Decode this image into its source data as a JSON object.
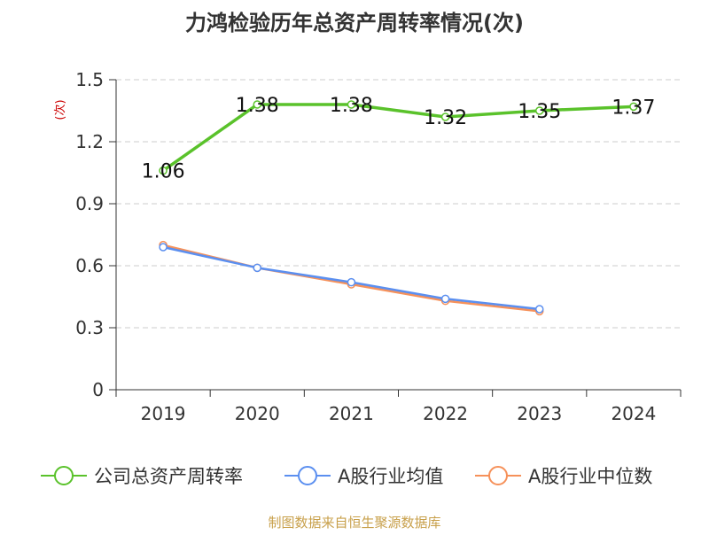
{
  "chart_data": {
    "type": "line",
    "title": "力鸿检验历年总资产周转率情况(次)",
    "ylabel": "(次)",
    "xlabel": "",
    "categories": [
      "2019",
      "2020",
      "2021",
      "2022",
      "2023",
      "2024"
    ],
    "ylim": [
      0,
      1.5
    ],
    "yticks": [
      0,
      0.3,
      0.6,
      0.9,
      1.2,
      1.5
    ],
    "ytick_labels": [
      "0",
      "0.3",
      "0.6",
      "0.9",
      "1.2",
      "1.5"
    ],
    "grid": true,
    "legend_position": "bottom",
    "series": [
      {
        "name": "公司总资产周转率",
        "color": "#5ac22b",
        "values": [
          1.06,
          1.38,
          1.38,
          1.32,
          1.35,
          1.37
        ],
        "labels": [
          "1.06",
          "1.38",
          "1.38",
          "1.32",
          "1.35",
          "1.37"
        ]
      },
      {
        "name": "A股行业均值",
        "color": "#5b8ff0",
        "values": [
          0.69,
          0.59,
          0.52,
          0.44,
          0.39,
          null
        ]
      },
      {
        "name": "A股行业中位数",
        "color": "#f6915a",
        "values": [
          0.7,
          0.59,
          0.51,
          0.43,
          0.38,
          null
        ]
      }
    ],
    "source": "制图数据来自恒生聚源数据库"
  }
}
